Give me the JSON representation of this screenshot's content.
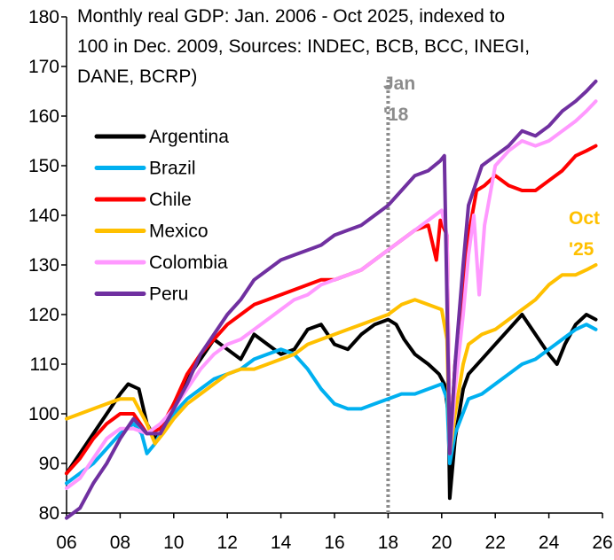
{
  "chart_data": {
    "type": "line",
    "title_lines": [
      "Monthly real GDP: Jan. 2006 - Oct 2025, indexed to",
      "100 in Dec. 2009, Sources: INDEC, BCB, BCC, INEGI,",
      "DANE, BCRP)"
    ],
    "xlabel": "",
    "ylabel": "",
    "xlim": [
      2006,
      2026
    ],
    "ylim": [
      80,
      180
    ],
    "x_ticks": [
      2006,
      2008,
      2010,
      2012,
      2014,
      2016,
      2018,
      2020,
      2022,
      2024,
      2026
    ],
    "x_tick_labels": [
      "06",
      "08",
      "10",
      "12",
      "14",
      "16",
      "18",
      "20",
      "22",
      "24",
      "26"
    ],
    "y_ticks": [
      80,
      90,
      100,
      110,
      120,
      130,
      140,
      150,
      160,
      170,
      180
    ],
    "y_tick_labels": [
      "80",
      "90",
      "100",
      "110",
      "120",
      "130",
      "140",
      "150",
      "160",
      "170",
      "180"
    ],
    "grid": false,
    "legend_position": "upper-left",
    "vline": {
      "x": 2018.0,
      "label_lines": [
        "Jan",
        "'18"
      ],
      "color": "#8c8c8c"
    },
    "end_annotation": {
      "label_lines": [
        "Oct",
        "'25"
      ],
      "color": "#ffc000"
    },
    "series": [
      {
        "name": "Argentina",
        "color": "#000000",
        "x": [
          2006.0,
          2006.5,
          2007.0,
          2007.5,
          2008.0,
          2008.3,
          2008.7,
          2009.0,
          2009.3,
          2009.5,
          2010.0,
          2010.5,
          2011.0,
          2011.5,
          2012.0,
          2012.5,
          2013.0,
          2013.5,
          2014.0,
          2014.5,
          2015.0,
          2015.5,
          2016.0,
          2016.5,
          2017.0,
          2017.5,
          2018.0,
          2018.3,
          2018.6,
          2019.0,
          2019.5,
          2019.9,
          2020.1,
          2020.25,
          2020.3,
          2020.5,
          2020.8,
          2021.0,
          2021.5,
          2022.0,
          2022.5,
          2023.0,
          2023.5,
          2024.0,
          2024.3,
          2024.6,
          2025.0,
          2025.4,
          2025.75
        ],
        "y": [
          88,
          92,
          96,
          100,
          104,
          106,
          105,
          98,
          95,
          96,
          102,
          107,
          111,
          115,
          113,
          111,
          116,
          114,
          112,
          113,
          117,
          118,
          114,
          113,
          116,
          118,
          119,
          118,
          115,
          112,
          110,
          108,
          106,
          100,
          83,
          95,
          105,
          108,
          111,
          114,
          117,
          120,
          116,
          112,
          110,
          114,
          118,
          120,
          119
        ]
      },
      {
        "name": "Brazil",
        "color": "#00b0f0",
        "x": [
          2006.0,
          2006.5,
          2007.0,
          2007.5,
          2008.0,
          2008.5,
          2008.8,
          2009.0,
          2009.3,
          2009.5,
          2010.0,
          2010.5,
          2011.0,
          2011.5,
          2012.0,
          2012.5,
          2013.0,
          2013.5,
          2014.0,
          2014.5,
          2015.0,
          2015.5,
          2016.0,
          2016.5,
          2017.0,
          2017.5,
          2018.0,
          2018.5,
          2019.0,
          2019.5,
          2020.0,
          2020.2,
          2020.3,
          2020.5,
          2021.0,
          2021.5,
          2022.0,
          2022.5,
          2023.0,
          2023.5,
          2024.0,
          2024.5,
          2025.0,
          2025.4,
          2025.75
        ],
        "y": [
          86,
          88,
          90,
          93,
          96,
          98,
          96,
          92,
          94,
          96,
          100,
          103,
          105,
          107,
          108,
          109,
          111,
          112,
          113,
          112,
          109,
          105,
          102,
          101,
          101,
          102,
          103,
          104,
          104,
          105,
          106,
          103,
          90,
          96,
          103,
          104,
          106,
          108,
          110,
          111,
          113,
          115,
          117,
          118,
          117
        ]
      },
      {
        "name": "Chile",
        "color": "#ff0000",
        "x": [
          2006.0,
          2006.5,
          2007.0,
          2007.5,
          2008.0,
          2008.5,
          2009.0,
          2009.5,
          2010.0,
          2010.5,
          2011.0,
          2011.5,
          2012.0,
          2012.5,
          2013.0,
          2013.5,
          2014.0,
          2014.5,
          2015.0,
          2015.5,
          2016.0,
          2016.5,
          2017.0,
          2017.5,
          2018.0,
          2018.5,
          2019.0,
          2019.5,
          2019.8,
          2019.95,
          2020.2,
          2020.3,
          2020.5,
          2020.8,
          2021.0,
          2021.3,
          2021.6,
          2022.0,
          2022.5,
          2023.0,
          2023.5,
          2024.0,
          2024.5,
          2025.0,
          2025.4,
          2025.75
        ],
        "y": [
          88,
          91,
          95,
          98,
          100,
          100,
          96,
          97,
          102,
          108,
          112,
          115,
          118,
          120,
          122,
          123,
          124,
          125,
          126,
          127,
          127,
          128,
          129,
          131,
          133,
          135,
          137,
          138,
          131,
          139,
          136,
          92,
          110,
          125,
          136,
          145,
          146,
          148,
          146,
          145,
          145,
          147,
          149,
          152,
          153,
          154
        ]
      },
      {
        "name": "Mexico",
        "color": "#ffc000",
        "x": [
          2006.0,
          2006.5,
          2007.0,
          2007.5,
          2008.0,
          2008.5,
          2009.0,
          2009.3,
          2009.6,
          2010.0,
          2010.5,
          2011.0,
          2011.5,
          2012.0,
          2012.5,
          2013.0,
          2013.5,
          2014.0,
          2014.5,
          2015.0,
          2015.5,
          2016.0,
          2016.5,
          2017.0,
          2017.5,
          2018.0,
          2018.5,
          2019.0,
          2019.5,
          2020.0,
          2020.2,
          2020.3,
          2020.5,
          2020.8,
          2021.0,
          2021.5,
          2022.0,
          2022.5,
          2023.0,
          2023.5,
          2024.0,
          2024.5,
          2025.0,
          2025.4,
          2025.75
        ],
        "y": [
          99,
          100,
          101,
          102,
          103,
          103,
          98,
          94,
          96,
          99,
          102,
          104,
          106,
          108,
          109,
          109,
          110,
          111,
          112,
          114,
          115,
          116,
          117,
          118,
          119,
          120,
          122,
          123,
          122,
          121,
          115,
          92,
          100,
          110,
          114,
          116,
          117,
          119,
          121,
          123,
          126,
          128,
          128,
          129,
          130
        ]
      },
      {
        "name": "Colombia",
        "color": "#ff99ff",
        "x": [
          2006.0,
          2006.5,
          2007.0,
          2007.5,
          2008.0,
          2008.5,
          2009.0,
          2009.5,
          2010.0,
          2010.5,
          2011.0,
          2011.5,
          2012.0,
          2012.5,
          2013.0,
          2013.5,
          2014.0,
          2014.5,
          2015.0,
          2015.5,
          2016.0,
          2016.5,
          2017.0,
          2017.5,
          2018.0,
          2018.5,
          2019.0,
          2019.5,
          2020.0,
          2020.2,
          2020.3,
          2020.5,
          2020.8,
          2021.0,
          2021.2,
          2021.4,
          2021.6,
          2022.0,
          2022.5,
          2023.0,
          2023.5,
          2024.0,
          2024.5,
          2025.0,
          2025.4,
          2025.75
        ],
        "y": [
          85,
          87,
          91,
          95,
          97,
          97,
          96,
          98,
          101,
          105,
          109,
          112,
          114,
          115,
          117,
          119,
          121,
          123,
          124,
          126,
          127,
          128,
          129,
          131,
          133,
          135,
          137,
          139,
          141,
          136,
          92,
          105,
          120,
          132,
          140,
          124,
          138,
          150,
          153,
          155,
          154,
          155,
          157,
          159,
          161,
          163
        ]
      },
      {
        "name": "Peru",
        "color": "#7030a0",
        "x": [
          2006.0,
          2006.5,
          2007.0,
          2007.5,
          2008.0,
          2008.5,
          2009.0,
          2009.5,
          2010.0,
          2010.5,
          2011.0,
          2011.5,
          2012.0,
          2012.5,
          2013.0,
          2013.5,
          2014.0,
          2014.5,
          2015.0,
          2015.5,
          2016.0,
          2016.5,
          2017.0,
          2017.5,
          2018.0,
          2018.5,
          2019.0,
          2019.5,
          2019.95,
          2020.1,
          2020.3,
          2020.5,
          2020.8,
          2021.0,
          2021.5,
          2022.0,
          2022.5,
          2023.0,
          2023.5,
          2024.0,
          2024.5,
          2025.0,
          2025.4,
          2025.75
        ],
        "y": [
          77,
          81,
          86,
          90,
          95,
          99,
          96,
          96,
          101,
          106,
          112,
          116,
          120,
          123,
          127,
          129,
          131,
          132,
          133,
          134,
          136,
          137,
          138,
          140,
          142,
          145,
          148,
          149,
          151,
          152,
          92,
          110,
          130,
          142,
          150,
          152,
          154,
          157,
          156,
          158,
          161,
          163,
          165,
          167
        ]
      }
    ]
  }
}
